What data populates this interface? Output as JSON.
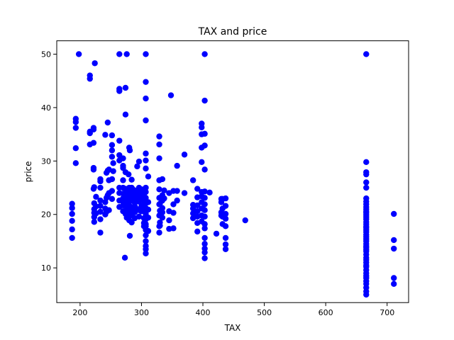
{
  "chart_data": {
    "type": "scatter",
    "title": "TAX and price",
    "xlabel": "TAX",
    "ylabel": "price",
    "xlim": [
      162,
      735
    ],
    "ylim": [
      3.5,
      52.5
    ],
    "xticks": [
      200,
      300,
      400,
      500,
      600,
      700
    ],
    "yticks": [
      10,
      20,
      30,
      40,
      50
    ],
    "xtick_labels": [
      "200",
      "300",
      "400",
      "500",
      "600",
      "700"
    ],
    "ytick_labels": [
      "10",
      "20",
      "30",
      "40",
      "50"
    ],
    "grid": false,
    "legend": "none",
    "marker_color": "#0000ff",
    "points": [
      [
        187,
        15.6
      ],
      [
        187,
        17.2
      ],
      [
        187,
        18.8
      ],
      [
        187,
        20.1
      ],
      [
        187,
        21.2
      ],
      [
        187,
        22.0
      ],
      [
        193,
        29.6
      ],
      [
        193,
        32.4
      ],
      [
        193,
        36.2
      ],
      [
        193,
        37.3
      ],
      [
        193,
        37.9
      ],
      [
        198,
        50.0
      ],
      [
        216,
        33.1
      ],
      [
        216,
        35.2
      ],
      [
        216,
        35.5
      ],
      [
        216,
        45.4
      ],
      [
        216,
        46.0
      ],
      [
        222,
        24.8
      ],
      [
        222,
        28.4
      ],
      [
        222,
        28.7
      ],
      [
        222,
        33.4
      ],
      [
        222,
        35.9
      ],
      [
        222,
        36.2
      ],
      [
        223,
        18.6
      ],
      [
        223,
        19.5
      ],
      [
        223,
        20.3
      ],
      [
        223,
        21.0
      ],
      [
        223,
        22.1
      ],
      [
        223,
        25.1
      ],
      [
        224,
        48.3
      ],
      [
        226,
        20.2
      ],
      [
        226,
        21.5
      ],
      [
        226,
        23.3
      ],
      [
        233,
        16.6
      ],
      [
        233,
        19.1
      ],
      [
        233,
        20.5
      ],
      [
        233,
        21.6
      ],
      [
        233,
        22.6
      ],
      [
        233,
        25.0
      ],
      [
        233,
        26.2
      ],
      [
        233,
        26.6
      ],
      [
        241,
        20.0
      ],
      [
        241,
        21.1
      ],
      [
        241,
        22.3
      ],
      [
        241,
        34.9
      ],
      [
        243,
        20.5
      ],
      [
        243,
        23.1
      ],
      [
        243,
        27.8
      ],
      [
        245,
        23.6
      ],
      [
        245,
        28.2
      ],
      [
        245,
        37.2
      ],
      [
        247,
        20.8
      ],
      [
        247,
        24.0
      ],
      [
        247,
        26.4
      ],
      [
        247,
        28.4
      ],
      [
        252,
        22.9
      ],
      [
        252,
        24.4
      ],
      [
        252,
        26.6
      ],
      [
        252,
        30.8
      ],
      [
        252,
        32.0
      ],
      [
        252,
        33.0
      ],
      [
        252,
        34.8
      ],
      [
        254,
        28.1
      ],
      [
        254,
        29.6
      ],
      [
        264,
        50.0
      ],
      [
        264,
        43.5
      ],
      [
        264,
        43.1
      ],
      [
        264,
        31.1
      ],
      [
        264,
        30.1
      ],
      [
        264,
        33.8
      ],
      [
        264,
        25.0
      ],
      [
        264,
        24.0
      ],
      [
        264,
        22.6
      ],
      [
        264,
        21.4
      ],
      [
        270,
        20.6
      ],
      [
        270,
        21.7
      ],
      [
        270,
        22.4
      ],
      [
        270,
        23.0
      ],
      [
        270,
        23.9
      ],
      [
        270,
        25.0
      ],
      [
        270,
        26.4
      ],
      [
        270,
        28.7
      ],
      [
        270,
        29.1
      ],
      [
        270,
        30.5
      ],
      [
        273,
        11.9
      ],
      [
        274,
        38.7
      ],
      [
        274,
        43.7
      ],
      [
        274,
        27.9
      ],
      [
        274,
        20.1
      ],
      [
        274,
        22.2
      ],
      [
        274,
        24.8
      ],
      [
        276,
        50.0
      ],
      [
        276,
        19.4
      ],
      [
        276,
        21.1
      ],
      [
        276,
        22.8
      ],
      [
        276,
        23.6
      ],
      [
        276,
        24.4
      ],
      [
        277,
        20.5
      ],
      [
        277,
        22.0
      ],
      [
        277,
        23.4
      ],
      [
        277,
        24.5
      ],
      [
        279,
        20.0
      ],
      [
        279,
        22.3
      ],
      [
        279,
        23.3
      ],
      [
        279,
        27.5
      ],
      [
        280,
        18.9
      ],
      [
        280,
        19.6
      ],
      [
        280,
        21.7
      ],
      [
        280,
        22.9
      ],
      [
        280,
        24.3
      ],
      [
        280,
        25.0
      ],
      [
        280,
        32.5
      ],
      [
        281,
        16.0
      ],
      [
        281,
        20.3
      ],
      [
        281,
        22.5
      ],
      [
        281,
        23.4
      ],
      [
        281,
        32.0
      ],
      [
        284,
        18.5
      ],
      [
        284,
        19.9
      ],
      [
        284,
        21.0
      ],
      [
        284,
        22.6
      ],
      [
        284,
        23.2
      ],
      [
        284,
        24.4
      ],
      [
        284,
        25.0
      ],
      [
        284,
        26.5
      ],
      [
        287,
        21.4
      ],
      [
        287,
        22.8
      ],
      [
        287,
        23.7
      ],
      [
        287,
        24.6
      ],
      [
        289,
        19.3
      ],
      [
        289,
        20.4
      ],
      [
        289,
        21.6
      ],
      [
        289,
        22.2
      ],
      [
        289,
        23.1
      ],
      [
        289,
        24.5
      ],
      [
        293,
        21.0
      ],
      [
        293,
        22.6
      ],
      [
        293,
        23.9
      ],
      [
        293,
        29.0
      ],
      [
        296,
        19.6
      ],
      [
        296,
        20.8
      ],
      [
        296,
        22.4
      ],
      [
        296,
        23.3
      ],
      [
        296,
        24.3
      ],
      [
        296,
        25.0
      ],
      [
        296,
        29.9
      ],
      [
        300,
        20.6
      ],
      [
        300,
        21.6
      ],
      [
        300,
        22.9
      ],
      [
        300,
        23.7
      ],
      [
        300,
        24.7
      ],
      [
        304,
        17.8
      ],
      [
        304,
        18.4
      ],
      [
        304,
        19.3
      ],
      [
        304,
        20.7
      ],
      [
        304,
        21.5
      ],
      [
        304,
        22.5
      ],
      [
        304,
        23.8
      ],
      [
        307,
        12.7
      ],
      [
        307,
        13.5
      ],
      [
        307,
        14.1
      ],
      [
        307,
        15.0
      ],
      [
        307,
        16.1
      ],
      [
        307,
        17.1
      ],
      [
        307,
        17.8
      ],
      [
        307,
        18.2
      ],
      [
        307,
        19.1
      ],
      [
        307,
        20.1
      ],
      [
        307,
        21.2
      ],
      [
        307,
        22.1
      ],
      [
        307,
        23.1
      ],
      [
        307,
        24.2
      ],
      [
        307,
        25.0
      ],
      [
        307,
        28.6
      ],
      [
        307,
        30.1
      ],
      [
        307,
        31.4
      ],
      [
        307,
        37.6
      ],
      [
        307,
        41.7
      ],
      [
        307,
        44.8
      ],
      [
        307,
        50.0
      ],
      [
        311,
        16.9
      ],
      [
        311,
        19.4
      ],
      [
        311,
        20.9
      ],
      [
        311,
        22.3
      ],
      [
        311,
        27.1
      ],
      [
        329,
        16.6
      ],
      [
        329,
        17.8
      ],
      [
        329,
        19.8
      ],
      [
        329,
        21.9
      ],
      [
        329,
        23.1
      ],
      [
        329,
        24.7
      ],
      [
        329,
        26.4
      ],
      [
        329,
        30.5
      ],
      [
        329,
        33.1
      ],
      [
        329,
        34.6
      ],
      [
        330,
        17.9
      ],
      [
        330,
        18.5
      ],
      [
        330,
        20.7
      ],
      [
        330,
        22.0
      ],
      [
        334,
        19.4
      ],
      [
        334,
        20.4
      ],
      [
        334,
        21.2
      ],
      [
        334,
        22.6
      ],
      [
        334,
        23.6
      ],
      [
        334,
        26.6
      ],
      [
        337,
        23.0
      ],
      [
        337,
        24.5
      ],
      [
        345,
        17.3
      ],
      [
        345,
        18.9
      ],
      [
        345,
        20.6
      ],
      [
        345,
        24.0
      ],
      [
        348,
        42.3
      ],
      [
        352,
        17.4
      ],
      [
        352,
        20.3
      ],
      [
        352,
        21.9
      ],
      [
        352,
        24.4
      ],
      [
        358,
        22.6
      ],
      [
        358,
        24.4
      ],
      [
        358,
        29.1
      ],
      [
        370,
        24.0
      ],
      [
        370,
        31.2
      ],
      [
        384,
        19.3
      ],
      [
        384,
        20.2
      ],
      [
        384,
        21.1
      ],
      [
        384,
        21.8
      ],
      [
        384,
        26.4
      ],
      [
        391,
        16.8
      ],
      [
        391,
        18.4
      ],
      [
        391,
        19.6
      ],
      [
        391,
        20.6
      ],
      [
        391,
        21.7
      ],
      [
        391,
        23.2
      ],
      [
        391,
        24.8
      ],
      [
        398,
        18.7
      ],
      [
        398,
        19.8
      ],
      [
        398,
        21.1
      ],
      [
        398,
        22.3
      ],
      [
        398,
        23.4
      ],
      [
        398,
        24.2
      ],
      [
        398,
        29.8
      ],
      [
        398,
        32.5
      ],
      [
        398,
        35.0
      ],
      [
        398,
        36.3
      ],
      [
        398,
        37.0
      ],
      [
        403,
        11.8
      ],
      [
        403,
        12.9
      ],
      [
        403,
        13.6
      ],
      [
        403,
        14.5
      ],
      [
        403,
        15.6
      ],
      [
        403,
        17.4
      ],
      [
        403,
        18.2
      ],
      [
        403,
        19.6
      ],
      [
        403,
        20.8
      ],
      [
        403,
        21.9
      ],
      [
        403,
        23.1
      ],
      [
        403,
        24.3
      ],
      [
        403,
        28.4
      ],
      [
        403,
        32.9
      ],
      [
        403,
        35.1
      ],
      [
        403,
        41.3
      ],
      [
        403,
        50.0
      ],
      [
        411,
        24.1
      ],
      [
        422,
        16.4
      ],
      [
        430,
        19.8
      ],
      [
        430,
        20.4
      ],
      [
        430,
        22.3
      ],
      [
        430,
        22.9
      ],
      [
        432,
        18.2
      ],
      [
        432,
        19.6
      ],
      [
        432,
        21.1
      ],
      [
        432,
        22.9
      ],
      [
        437,
        13.5
      ],
      [
        437,
        14.4
      ],
      [
        437,
        15.6
      ],
      [
        437,
        17.8
      ],
      [
        437,
        19.2
      ],
      [
        437,
        20.1
      ],
      [
        437,
        21.6
      ],
      [
        437,
        23.0
      ],
      [
        469,
        18.9
      ],
      [
        666,
        5.0
      ],
      [
        666,
        5.6
      ],
      [
        666,
        6.3
      ],
      [
        666,
        7.0
      ],
      [
        666,
        7.5
      ],
      [
        666,
        8.1
      ],
      [
        666,
        8.5
      ],
      [
        666,
        9.0
      ],
      [
        666,
        9.6
      ],
      [
        666,
        10.2
      ],
      [
        666,
        10.5
      ],
      [
        666,
        11.0
      ],
      [
        666,
        11.5
      ],
      [
        666,
        11.9
      ],
      [
        666,
        12.5
      ],
      [
        666,
        13.1
      ],
      [
        666,
        13.4
      ],
      [
        666,
        13.8
      ],
      [
        666,
        14.1
      ],
      [
        666,
        14.5
      ],
      [
        666,
        15.0
      ],
      [
        666,
        15.4
      ],
      [
        666,
        15.8
      ],
      [
        666,
        16.2
      ],
      [
        666,
        16.7
      ],
      [
        666,
        17.1
      ],
      [
        666,
        17.5
      ],
      [
        666,
        17.8
      ],
      [
        666,
        18.2
      ],
      [
        666,
        18.6
      ],
      [
        666,
        19.1
      ],
      [
        666,
        19.5
      ],
      [
        666,
        19.9
      ],
      [
        666,
        20.3
      ],
      [
        666,
        20.6
      ],
      [
        666,
        21.0
      ],
      [
        666,
        21.4
      ],
      [
        666,
        21.9
      ],
      [
        666,
        22.4
      ],
      [
        666,
        23.0
      ],
      [
        666,
        25.0
      ],
      [
        666,
        26.0
      ],
      [
        666,
        27.5
      ],
      [
        666,
        27.9
      ],
      [
        666,
        29.8
      ],
      [
        666,
        50.0
      ],
      [
        711,
        7.0
      ],
      [
        711,
        8.1
      ],
      [
        711,
        13.6
      ],
      [
        711,
        15.2
      ],
      [
        711,
        20.1
      ]
    ]
  }
}
